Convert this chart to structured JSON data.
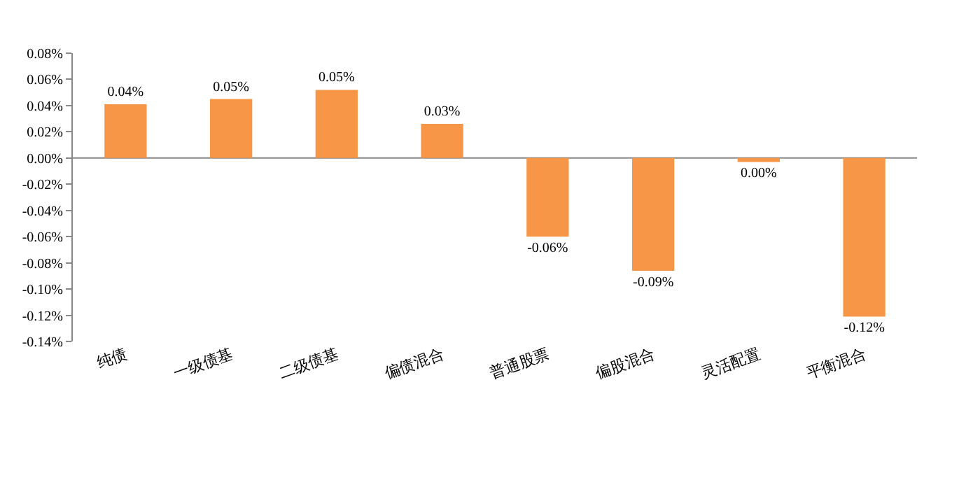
{
  "chart_data": {
    "type": "bar",
    "categories": [
      "纯债",
      "一级债基",
      "二级债基",
      "偏债混合",
      "普通股票",
      "偏股混合",
      "灵活配置",
      "平衡混合"
    ],
    "values": [
      0.041,
      0.045,
      0.052,
      0.026,
      -0.06,
      -0.086,
      -0.003,
      -0.121
    ],
    "value_labels": [
      "0.04%",
      "0.05%",
      "0.05%",
      "0.03%",
      "-0.06%",
      "-0.09%",
      "0.00%",
      "-0.12%"
    ],
    "color": "#f79646",
    "ylim": [
      -0.14,
      0.08
    ],
    "yticks": [
      {
        "value": 0.08,
        "label": "0.08%"
      },
      {
        "value": 0.06,
        "label": "0.06%"
      },
      {
        "value": 0.04,
        "label": "0.04%"
      },
      {
        "value": 0.02,
        "label": "0.02%"
      },
      {
        "value": 0.0,
        "label": "0.00%"
      },
      {
        "value": -0.02,
        "label": "-0.02%"
      },
      {
        "value": -0.04,
        "label": "-0.04%"
      },
      {
        "value": -0.06,
        "label": "-0.06%"
      },
      {
        "value": -0.08,
        "label": "-0.08%"
      },
      {
        "value": -0.1,
        "label": "-0.10%"
      },
      {
        "value": -0.12,
        "label": "-0.12%"
      },
      {
        "value": -0.14,
        "label": "-0.14%"
      }
    ],
    "legend": false
  }
}
